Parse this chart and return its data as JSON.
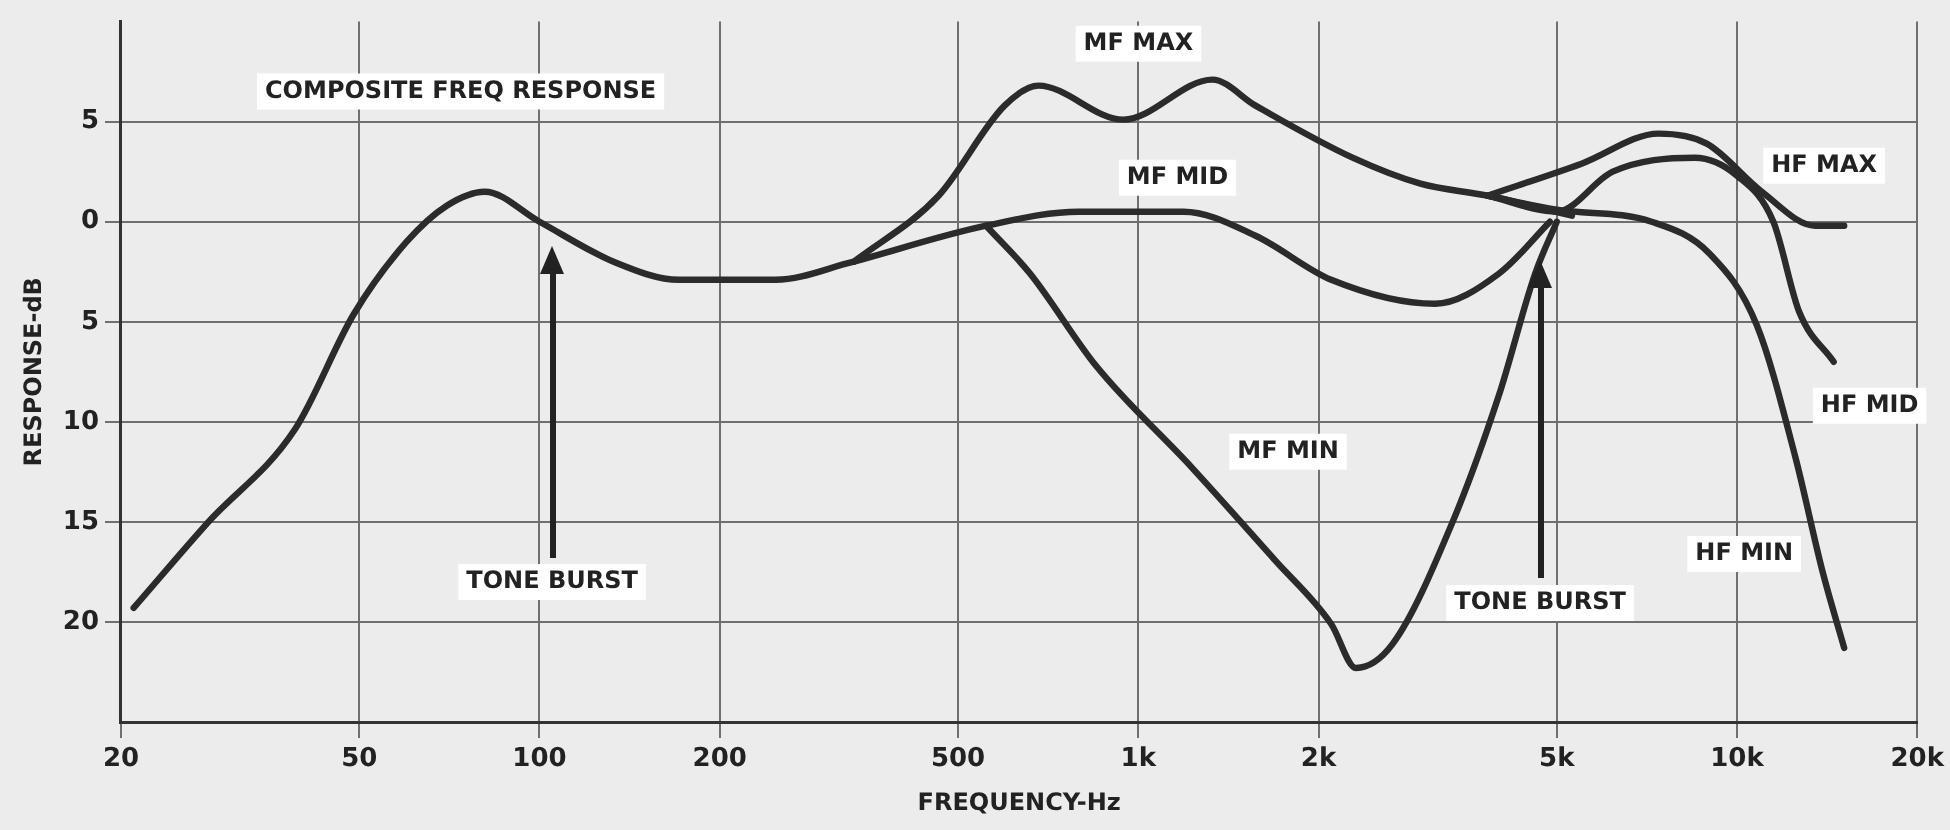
{
  "chart_data": {
    "type": "line",
    "title": "COMPOSITE FREQ RESPONSE",
    "xlabel": "FREQUENCY-Hz",
    "ylabel": "RESPONSE-dB",
    "log": "x",
    "grid": true,
    "marker": "none",
    "line_style": "solid",
    "xlim": [
      20,
      20000
    ],
    "xticks": [
      20,
      50,
      100,
      200,
      500,
      {
        "value": 1000,
        "label": "1k"
      },
      {
        "value": 2000,
        "label": "2k"
      },
      {
        "value": 5000,
        "label": "5k"
      },
      {
        "value": 10000,
        "label": "10k"
      },
      {
        "value": 20000,
        "label": "20k"
      }
    ],
    "ylim": [
      -25,
      10
    ],
    "yticks": [
      5,
      0,
      {
        "value": -5,
        "label": "5"
      },
      {
        "value": -10,
        "label": "10"
      },
      {
        "value": -15,
        "label": "15"
      },
      {
        "value": -20,
        "label": "20"
      }
    ],
    "annotations": [
      "TONE BURST",
      "TONE BURST"
    ],
    "series": [
      {
        "color": "#2b2b2b",
        "x": [
          21,
          28,
          39,
          49,
          60,
          70,
          81,
          100,
          133,
          171,
          248,
          335
        ],
        "values": [
          -19.3,
          -15,
          -10.4,
          -4.6,
          -1,
          0.8,
          1.5,
          0,
          -2,
          -2.9,
          -2.9,
          -2
        ]
      },
      {
        "name": "MF MAX",
        "color": "#2b2b2b",
        "x": [
          335,
          464,
          598,
          681,
          944,
          1330,
          1570,
          2280,
          2960,
          3830,
          5300
        ],
        "values": [
          -2,
          1.3,
          5.8,
          6.8,
          5.1,
          7.1,
          5.8,
          3.2,
          1.9,
          1.3,
          0.3
        ]
      },
      {
        "name": "MF MID",
        "color": "#2b2b2b",
        "x": [
          335,
          557,
          795,
          1190,
          1570,
          2100,
          3130,
          4000,
          4870
        ],
        "values": [
          -2,
          -0.2,
          0.5,
          0.5,
          -0.7,
          -2.9,
          -4.1,
          -2.6,
          0
        ]
      },
      {
        "name": "MF MIN",
        "color": "#2b2b2b",
        "x": [
          557,
          660,
          850,
          1230,
          1690,
          2100,
          2310,
          2660,
          3350,
          4000,
          4600,
          5000
        ],
        "values": [
          -0.2,
          -2.6,
          -7.2,
          -12.3,
          -16.9,
          -20.1,
          -22.3,
          -21.1,
          -15,
          -8.7,
          -2.6,
          0
        ]
      },
      {
        "name": "HF MAX",
        "color": "#2b2b2b",
        "x": [
          3830,
          5500,
          7400,
          8900,
          11000,
          13500,
          15100
        ],
        "values": [
          1.3,
          2.9,
          4.4,
          3.9,
          1.5,
          -0.2,
          -0.2
        ]
      },
      {
        "name": "HF MID",
        "color": "#2b2b2b",
        "x": [
          3830,
          5000,
          6200,
          8500,
          10000,
          11500,
          12700,
          14500
        ],
        "values": [
          1.3,
          0.5,
          2.5,
          3.2,
          2.3,
          0,
          -4.5,
          -7
        ]
      },
      {
        "name": "HF MIN",
        "color": "#2b2b2b",
        "x": [
          3830,
          5000,
          7200,
          9000,
          10800,
          12500,
          13900,
          15100
        ],
        "values": [
          1.3,
          0.6,
          0,
          -1.6,
          -5.2,
          -11.7,
          -17.5,
          -21.3
        ]
      }
    ]
  }
}
